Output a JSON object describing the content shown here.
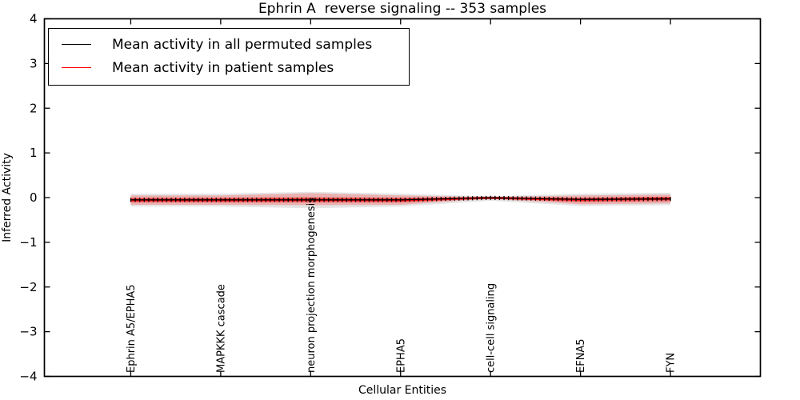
{
  "chart_data": {
    "type": "line",
    "title": "Ephrin A  reverse signaling -- 353 samples",
    "xlabel": "Cellular Entities",
    "ylabel": "Inferred Activity",
    "xlim": [
      -0.96,
      7.0
    ],
    "ylim": [
      -4,
      4
    ],
    "grid": false,
    "yticks": [
      4,
      3,
      2,
      1,
      0,
      -1,
      -2,
      -3,
      -4
    ],
    "ytick_labels": [
      "4",
      "3",
      "2",
      "1",
      "0",
      "−1",
      "−2",
      "−3",
      "−4"
    ],
    "categories": [
      "Ephrin A5/EPHA5",
      "MAPKKK cascade",
      "neuron projection morphogenesis",
      "EPHA5",
      "cell-cell signaling",
      "EFNA5",
      "FYN"
    ],
    "x": [
      0,
      1,
      2,
      3,
      4,
      5,
      6
    ],
    "series": [
      {
        "name": "Mean activity in all permuted samples",
        "color": "#000000",
        "marker": "+",
        "values": [
          -0.05,
          -0.05,
          -0.05,
          -0.05,
          -0.005,
          -0.04,
          -0.03
        ]
      },
      {
        "name": "Mean activity in patient samples",
        "color": "#ff0000",
        "marker": null,
        "values": [
          -0.055,
          -0.055,
          -0.05,
          -0.055,
          -0.005,
          -0.045,
          -0.025
        ]
      }
    ],
    "bands": [
      {
        "name": "permuted-std-band",
        "color": "#000000",
        "opacity": 0.1,
        "upper": [
          0.09,
          0.09,
          0.13,
          0.09,
          0.03,
          0.09,
          0.11
        ],
        "lower": [
          -0.2,
          -0.2,
          -0.24,
          -0.2,
          -0.07,
          -0.19,
          -0.17
        ]
      },
      {
        "name": "patient-std-outer-band",
        "color": "#ff0000",
        "opacity": 0.22,
        "upper": [
          0.05,
          0.05,
          0.1,
          0.05,
          0.01,
          0.05,
          0.07
        ],
        "lower": [
          -0.16,
          -0.16,
          -0.17,
          -0.16,
          -0.03,
          -0.15,
          -0.13
        ]
      },
      {
        "name": "patient-std-inner-band",
        "color": "#ff0000",
        "opacity": 0.42,
        "upper": [
          0.0,
          0.0,
          0.01,
          0.0,
          0.0,
          0.0,
          0.02
        ],
        "lower": [
          -0.11,
          -0.11,
          -0.11,
          -0.11,
          -0.02,
          -0.1,
          -0.08
        ]
      }
    ],
    "legend": {
      "position": "upper left",
      "entries": [
        "Mean activity in all permuted samples",
        "Mean activity in patient samples"
      ]
    }
  }
}
